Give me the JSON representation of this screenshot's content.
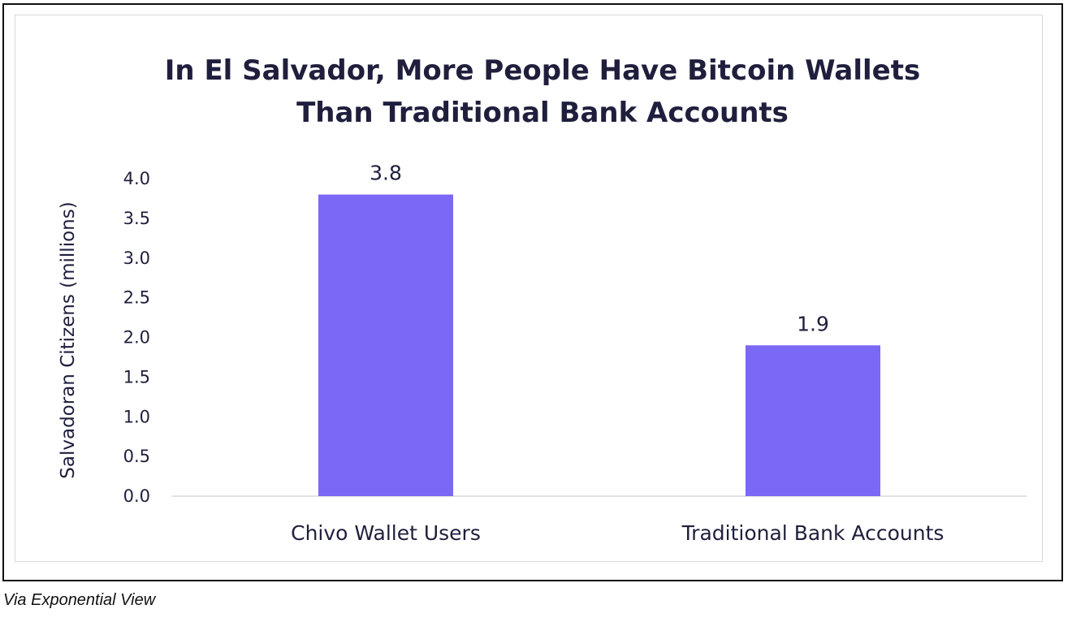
{
  "chart_data": {
    "type": "bar",
    "title_lines": [
      "In El Salvador, More People Have Bitcoin Wallets",
      "Than Traditional Bank Accounts"
    ],
    "ylabel": "Salvadoran Citizens (millions)",
    "xlabel": "",
    "categories": [
      "Chivo Wallet Users",
      "Traditional Bank Accounts"
    ],
    "values": [
      3.8,
      1.9
    ],
    "value_labels": [
      "3.8",
      "1.9"
    ],
    "ylim": [
      0,
      4.0
    ],
    "y_ticks": [
      "0.0",
      "0.5",
      "1.0",
      "1.5",
      "2.0",
      "2.5",
      "3.0",
      "3.5",
      "4.0"
    ],
    "grid": false,
    "legend": "none",
    "bar_color": "#7b68f4"
  },
  "source_note": "Via Exponential View"
}
